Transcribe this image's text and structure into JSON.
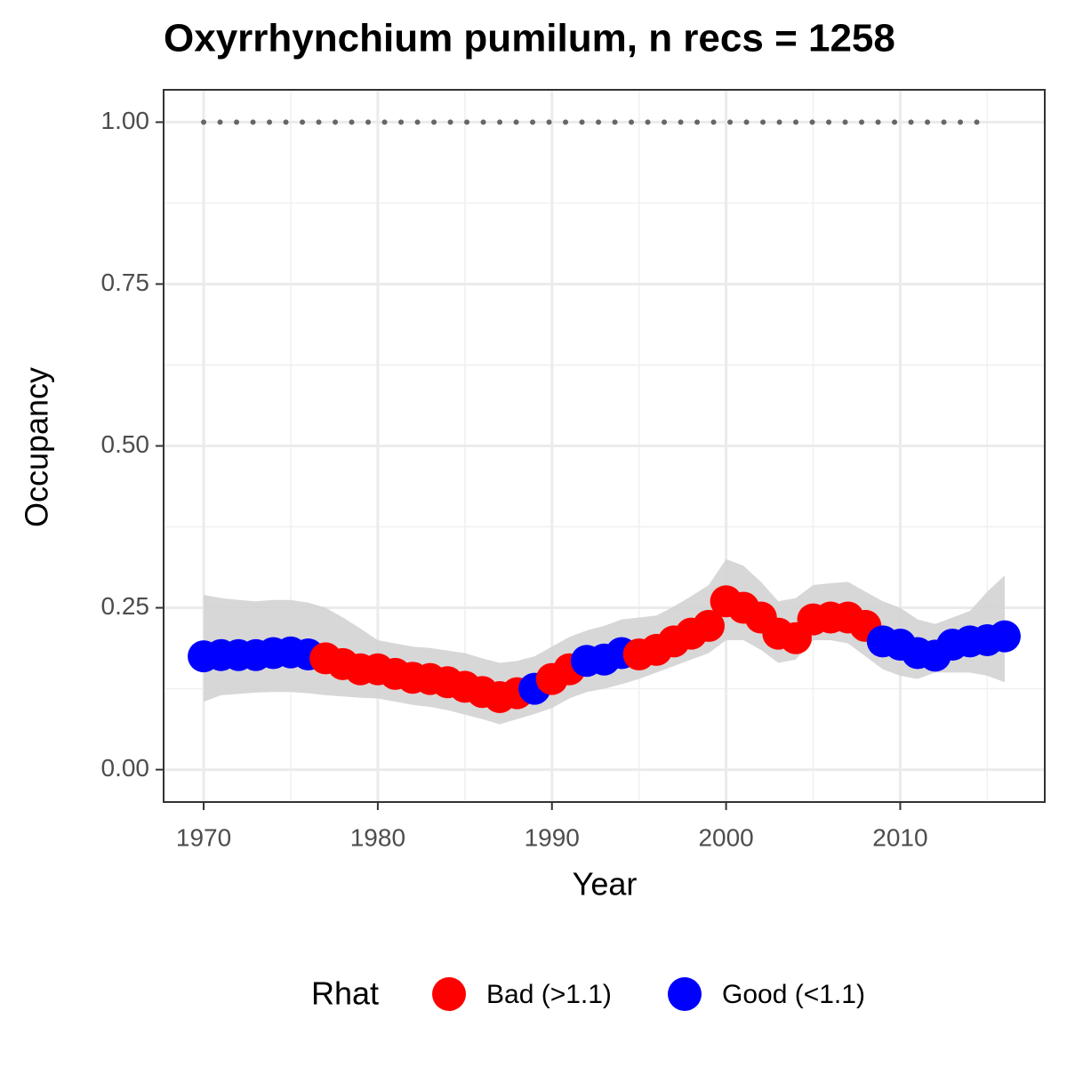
{
  "chart_data": {
    "type": "line",
    "title": "Oxyrrhynchium pumilum, n recs = 1258",
    "x_label": "Year",
    "y_label": "Occupancy",
    "x": [
      1970,
      1971,
      1972,
      1973,
      1974,
      1975,
      1976,
      1977,
      1978,
      1979,
      1980,
      1981,
      1982,
      1983,
      1984,
      1985,
      1986,
      1987,
      1988,
      1989,
      1990,
      1991,
      1992,
      1993,
      1994,
      1995,
      1996,
      1997,
      1998,
      1999,
      2000,
      2001,
      2002,
      2003,
      2004,
      2005,
      2006,
      2007,
      2008,
      2009,
      2010,
      2011,
      2012,
      2013,
      2014,
      2015,
      2016
    ],
    "values": [
      0.175,
      0.177,
      0.177,
      0.177,
      0.18,
      0.181,
      0.178,
      0.172,
      0.163,
      0.155,
      0.155,
      0.148,
      0.142,
      0.14,
      0.135,
      0.128,
      0.12,
      0.112,
      0.118,
      0.125,
      0.14,
      0.155,
      0.168,
      0.17,
      0.18,
      0.178,
      0.185,
      0.198,
      0.21,
      0.222,
      0.26,
      0.25,
      0.235,
      0.21,
      0.203,
      0.232,
      0.235,
      0.235,
      0.222,
      0.198,
      0.193,
      0.18,
      0.176,
      0.193,
      0.198,
      0.2,
      0.206
    ],
    "lower": [
      0.105,
      0.115,
      0.117,
      0.119,
      0.12,
      0.12,
      0.118,
      0.115,
      0.113,
      0.111,
      0.11,
      0.105,
      0.1,
      0.097,
      0.092,
      0.085,
      0.078,
      0.07,
      0.078,
      0.086,
      0.095,
      0.11,
      0.12,
      0.125,
      0.132,
      0.14,
      0.15,
      0.16,
      0.17,
      0.18,
      0.2,
      0.2,
      0.185,
      0.165,
      0.17,
      0.2,
      0.2,
      0.195,
      0.175,
      0.155,
      0.145,
      0.14,
      0.15,
      0.15,
      0.15,
      0.145,
      0.135
    ],
    "upper": [
      0.27,
      0.265,
      0.262,
      0.26,
      0.262,
      0.262,
      0.258,
      0.25,
      0.235,
      0.218,
      0.2,
      0.195,
      0.19,
      0.188,
      0.184,
      0.18,
      0.172,
      0.165,
      0.168,
      0.175,
      0.19,
      0.205,
      0.215,
      0.222,
      0.232,
      0.235,
      0.238,
      0.252,
      0.268,
      0.285,
      0.325,
      0.315,
      0.29,
      0.26,
      0.265,
      0.285,
      0.288,
      0.29,
      0.275,
      0.26,
      0.25,
      0.232,
      0.225,
      0.235,
      0.245,
      0.275,
      0.3
    ],
    "rhat": [
      "Good (<1.1)",
      "Good (<1.1)",
      "Good (<1.1)",
      "Good (<1.1)",
      "Good (<1.1)",
      "Good (<1.1)",
      "Good (<1.1)",
      "Bad (>1.1)",
      "Bad (>1.1)",
      "Bad (>1.1)",
      "Bad (>1.1)",
      "Bad (>1.1)",
      "Bad (>1.1)",
      "Bad (>1.1)",
      "Bad (>1.1)",
      "Bad (>1.1)",
      "Bad (>1.1)",
      "Bad (>1.1)",
      "Bad (>1.1)",
      "Good (<1.1)",
      "Bad (>1.1)",
      "Bad (>1.1)",
      "Good (<1.1)",
      "Good (<1.1)",
      "Good (<1.1)",
      "Bad (>1.1)",
      "Bad (>1.1)",
      "Bad (>1.1)",
      "Bad (>1.1)",
      "Bad (>1.1)",
      "Bad (>1.1)",
      "Bad (>1.1)",
      "Bad (>1.1)",
      "Bad (>1.1)",
      "Bad (>1.1)",
      "Bad (>1.1)",
      "Bad (>1.1)",
      "Bad (>1.1)",
      "Bad (>1.1)",
      "Good (<1.1)",
      "Good (<1.1)",
      "Good (<1.1)",
      "Good (<1.1)",
      "Good (<1.1)",
      "Good (<1.1)",
      "Good (<1.1)",
      "Good (<1.1)"
    ],
    "legend": {
      "title": "Rhat",
      "entries": [
        {
          "name": "Bad (>1.1)",
          "color": "#ff0000"
        },
        {
          "name": "Good (<1.1)",
          "color": "#0000ff"
        }
      ]
    },
    "ribbon_color": "#d3d3d3",
    "reference_line": {
      "y": 1,
      "x": [
        1970,
        2015
      ],
      "color": "#666666"
    },
    "xlim": [
      1967.7,
      2018.3
    ],
    "ylim": [
      -0.05,
      1.05
    ],
    "xticks": [
      1970,
      1980,
      1990,
      2000,
      2010
    ],
    "xminor": [
      1975,
      1985,
      1995,
      2005,
      2015
    ],
    "yticks": [
      {
        "value": 0,
        "label": "0.00"
      },
      {
        "value": 0.25,
        "label": "0.25"
      },
      {
        "value": 0.5,
        "label": "0.50"
      },
      {
        "value": 0.75,
        "label": "0.75"
      },
      {
        "value": 1,
        "label": "1.00"
      }
    ],
    "yminor": [
      0.125,
      0.375,
      0.625,
      0.875
    ],
    "grid": true
  }
}
